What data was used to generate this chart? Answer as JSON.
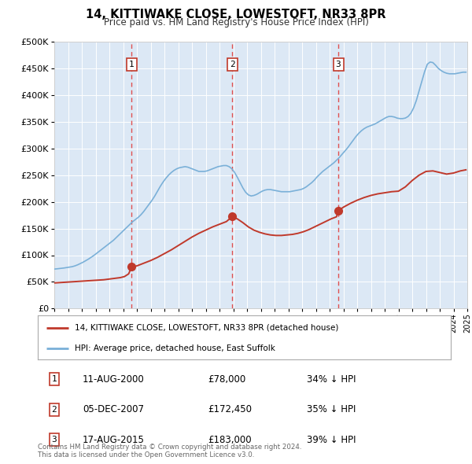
{
  "title": "14, KITTIWAKE CLOSE, LOWESTOFT, NR33 8PR",
  "subtitle": "Price paid vs. HM Land Registry's House Price Index (HPI)",
  "bg_color": "#ffffff",
  "plot_bg_color": "#dce8f5",
  "grid_color": "#ffffff",
  "hpi_color": "#7ab0d8",
  "price_color": "#c0392b",
  "dashed_line_color": "#e05050",
  "yticks": [
    0,
    50000,
    100000,
    150000,
    200000,
    250000,
    300000,
    350000,
    400000,
    450000,
    500000
  ],
  "xmin": 1995,
  "xmax": 2025,
  "ymin": 0,
  "ymax": 500000,
  "sale_dates": [
    2000.62,
    2007.93,
    2015.63
  ],
  "sale_prices": [
    78000,
    172450,
    183000
  ],
  "sale_labels": [
    "1",
    "2",
    "3"
  ],
  "legend_line1": "14, KITTIWAKE CLOSE, LOWESTOFT, NR33 8PR (detached house)",
  "legend_line2": "HPI: Average price, detached house, East Suffolk",
  "table_rows": [
    [
      "1",
      "11-AUG-2000",
      "£78,000",
      "34% ↓ HPI"
    ],
    [
      "2",
      "05-DEC-2007",
      "£172,450",
      "35% ↓ HPI"
    ],
    [
      "3",
      "17-AUG-2015",
      "£183,000",
      "39% ↓ HPI"
    ]
  ],
  "footnote": "Contains HM Land Registry data © Crown copyright and database right 2024.\nThis data is licensed under the Open Government Licence v3.0.",
  "hpi_x": [
    1995.0,
    1995.1,
    1995.2,
    1995.3,
    1995.5,
    1995.7,
    1995.9,
    1996.1,
    1996.3,
    1996.5,
    1996.7,
    1996.9,
    1997.1,
    1997.3,
    1997.5,
    1997.7,
    1997.9,
    1998.1,
    1998.3,
    1998.5,
    1998.7,
    1998.9,
    1999.1,
    1999.3,
    1999.5,
    1999.7,
    1999.9,
    2000.1,
    2000.3,
    2000.5,
    2000.7,
    2000.9,
    2001.1,
    2001.3,
    2001.5,
    2001.7,
    2001.9,
    2002.1,
    2002.3,
    2002.5,
    2002.7,
    2002.9,
    2003.1,
    2003.3,
    2003.5,
    2003.7,
    2003.9,
    2004.1,
    2004.3,
    2004.5,
    2004.7,
    2004.9,
    2005.1,
    2005.3,
    2005.5,
    2005.7,
    2005.9,
    2006.1,
    2006.3,
    2006.5,
    2006.7,
    2006.9,
    2007.1,
    2007.3,
    2007.5,
    2007.7,
    2007.9,
    2008.1,
    2008.3,
    2008.5,
    2008.7,
    2008.9,
    2009.1,
    2009.3,
    2009.5,
    2009.7,
    2009.9,
    2010.1,
    2010.3,
    2010.5,
    2010.7,
    2010.9,
    2011.1,
    2011.3,
    2011.5,
    2011.7,
    2011.9,
    2012.1,
    2012.3,
    2012.5,
    2012.7,
    2012.9,
    2013.1,
    2013.3,
    2013.5,
    2013.7,
    2013.9,
    2014.1,
    2014.3,
    2014.5,
    2014.7,
    2014.9,
    2015.1,
    2015.3,
    2015.5,
    2015.7,
    2015.9,
    2016.1,
    2016.3,
    2016.5,
    2016.7,
    2016.9,
    2017.1,
    2017.3,
    2017.5,
    2017.7,
    2017.9,
    2018.1,
    2018.3,
    2018.5,
    2018.7,
    2018.9,
    2019.1,
    2019.3,
    2019.5,
    2019.7,
    2019.9,
    2020.1,
    2020.3,
    2020.5,
    2020.7,
    2020.9,
    2021.1,
    2021.3,
    2021.5,
    2021.7,
    2021.9,
    2022.1,
    2022.3,
    2022.5,
    2022.7,
    2022.9,
    2023.1,
    2023.3,
    2023.5,
    2023.7,
    2023.9,
    2024.1,
    2024.3,
    2024.5,
    2024.7,
    2024.9
  ],
  "hpi_y": [
    74000,
    74200,
    74500,
    74800,
    75500,
    76000,
    76800,
    77500,
    78500,
    80000,
    82000,
    84500,
    87000,
    90000,
    93000,
    96500,
    100000,
    104000,
    108000,
    112000,
    116000,
    120000,
    124000,
    128000,
    133000,
    138000,
    143000,
    148000,
    153000,
    158000,
    163000,
    167000,
    171000,
    176000,
    182000,
    189000,
    196000,
    203000,
    211000,
    220000,
    229000,
    237000,
    244000,
    250000,
    255000,
    259000,
    262000,
    264000,
    265000,
    266000,
    265000,
    263000,
    261000,
    259000,
    257000,
    257000,
    257000,
    258000,
    260000,
    262000,
    264000,
    266000,
    267000,
    268000,
    268000,
    266000,
    262000,
    255000,
    246000,
    236000,
    226000,
    218000,
    213000,
    211000,
    212000,
    214000,
    217000,
    220000,
    222000,
    223000,
    223000,
    222000,
    221000,
    220000,
    219000,
    219000,
    219000,
    219000,
    220000,
    221000,
    222000,
    223000,
    225000,
    228000,
    232000,
    236000,
    241000,
    247000,
    252000,
    257000,
    261000,
    265000,
    269000,
    273000,
    278000,
    283000,
    289000,
    295000,
    301000,
    308000,
    315000,
    322000,
    328000,
    333000,
    337000,
    340000,
    342000,
    344000,
    346000,
    349000,
    352000,
    355000,
    358000,
    360000,
    360000,
    359000,
    357000,
    356000,
    356000,
    357000,
    360000,
    366000,
    376000,
    390000,
    408000,
    426000,
    444000,
    458000,
    462000,
    461000,
    456000,
    450000,
    446000,
    443000,
    441000,
    440000,
    440000,
    440000,
    441000,
    442000,
    443000,
    443000
  ],
  "price_x": [
    1995.0,
    1995.3,
    1995.6,
    1995.9,
    1996.2,
    1996.5,
    1996.8,
    1997.1,
    1997.4,
    1997.7,
    1998.0,
    1998.3,
    1998.6,
    1998.9,
    1999.2,
    1999.5,
    1999.8,
    2000.1,
    2000.4,
    2000.62,
    2001.0,
    2001.5,
    2002.0,
    2002.5,
    2003.0,
    2003.5,
    2004.0,
    2004.5,
    2005.0,
    2005.5,
    2006.0,
    2006.5,
    2007.0,
    2007.5,
    2007.93,
    2008.3,
    2008.7,
    2009.1,
    2009.5,
    2009.9,
    2010.3,
    2010.7,
    2011.1,
    2011.5,
    2011.9,
    2012.3,
    2012.7,
    2013.1,
    2013.5,
    2013.9,
    2014.3,
    2014.7,
    2015.1,
    2015.5,
    2015.63,
    2016.0,
    2016.5,
    2017.0,
    2017.5,
    2018.0,
    2018.5,
    2019.0,
    2019.5,
    2020.0,
    2020.5,
    2021.0,
    2021.5,
    2022.0,
    2022.5,
    2023.0,
    2023.5,
    2024.0,
    2024.5,
    2024.9
  ],
  "price_y": [
    48000,
    48500,
    49000,
    49500,
    50000,
    50500,
    51000,
    51500,
    52000,
    52500,
    53000,
    53500,
    54000,
    55000,
    56000,
    57000,
    58000,
    60000,
    65000,
    78000,
    80000,
    85000,
    90000,
    96000,
    103000,
    110000,
    118000,
    126000,
    134000,
    141000,
    147000,
    153000,
    158000,
    163000,
    172450,
    168000,
    161000,
    153000,
    147000,
    143000,
    140000,
    138000,
    137000,
    137000,
    138000,
    139000,
    141000,
    144000,
    148000,
    153000,
    158000,
    163000,
    168000,
    172000,
    183000,
    190000,
    197000,
    203000,
    208000,
    212000,
    215000,
    217000,
    219000,
    220000,
    228000,
    240000,
    250000,
    257000,
    258000,
    255000,
    252000,
    254000,
    258000,
    260000
  ]
}
